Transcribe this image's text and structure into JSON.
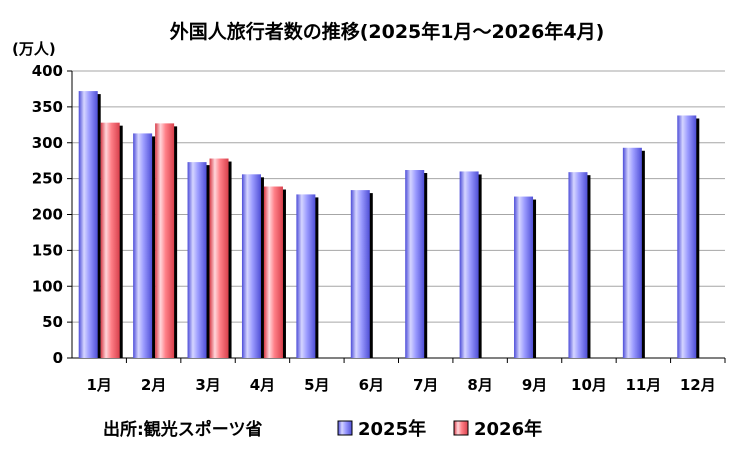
{
  "chart_data": {
    "type": "bar",
    "title": "外国人旅行者数の推移(2025年1月～2026年4月)",
    "ylabel": "(万人)",
    "xlabel": "",
    "categories": [
      "1月",
      "2月",
      "3月",
      "4月",
      "5月",
      "6月",
      "7月",
      "8月",
      "9月",
      "10月",
      "11月",
      "12月"
    ],
    "series": [
      {
        "name": "2025年",
        "color": "#8f8fff",
        "values": [
          372,
          313,
          273,
          256,
          228,
          234,
          262,
          260,
          225,
          259,
          293,
          338
        ]
      },
      {
        "name": "2026年",
        "color": "#ff6f78",
        "values": [
          328,
          327,
          278,
          239,
          null,
          null,
          null,
          null,
          null,
          null,
          null,
          null
        ]
      }
    ],
    "ylim": [
      0,
      400
    ],
    "yticks": [
      0,
      50,
      100,
      150,
      200,
      250,
      300,
      350,
      400
    ],
    "grid": true,
    "legend_position": "bottom",
    "source": "出所:観光スポーツ省"
  }
}
